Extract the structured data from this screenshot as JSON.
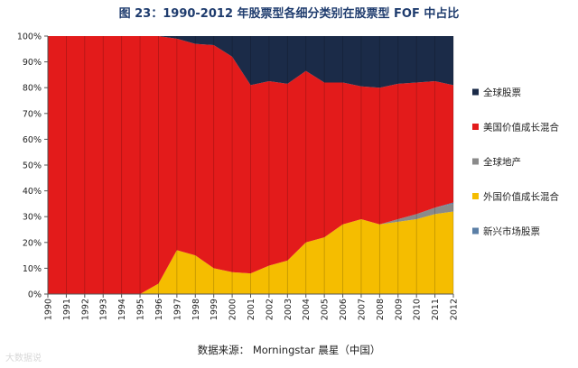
{
  "title": "图 23：1990-2012 年股票型各细分类别在股票型 FOF 中占比",
  "source": "数据来源：  Morningstar 晨星（中国）",
  "watermark": "大数据说",
  "colors": {
    "全球股票": "#1b2b48",
    "美国价值成长混合": "#e31b1b",
    "全球地产": "#8a8a8a",
    "外国价值成长混合": "#f5bd00",
    "新兴市场股票": "#5b7fa6"
  },
  "chart_data": {
    "type": "area",
    "stacked": true,
    "x": [
      "1990",
      "1991",
      "1992",
      "1993",
      "1994",
      "1995",
      "1996",
      "1997",
      "1998",
      "1999",
      "2000",
      "2001",
      "2002",
      "2003",
      "2004",
      "2005",
      "2006",
      "2007",
      "2008",
      "2009",
      "2010",
      "2011",
      "2012"
    ],
    "ylim": [
      0,
      100
    ],
    "y_ticks": [
      "0%",
      "10%",
      "20%",
      "30%",
      "40%",
      "50%",
      "60%",
      "70%",
      "80%",
      "90%",
      "100%"
    ],
    "legend_position": "right",
    "series": [
      {
        "name": "外国价值成长混合",
        "values": [
          0,
          0,
          0,
          0,
          0,
          0,
          4,
          17,
          15,
          10,
          8.5,
          8,
          11,
          13,
          20,
          22,
          27,
          29,
          27,
          28,
          29,
          31,
          32
        ]
      },
      {
        "name": "全球地产",
        "values": [
          0,
          0,
          0,
          0,
          0,
          0,
          0,
          0,
          0,
          0,
          0,
          0,
          0,
          0,
          0,
          0,
          0,
          0,
          0,
          1,
          2,
          2.5,
          3
        ]
      },
      {
        "name": "新兴市场股票",
        "values": [
          0,
          0,
          0,
          0,
          0,
          0,
          0,
          0,
          0,
          0,
          0,
          0,
          0,
          0,
          0,
          0,
          0,
          0,
          0,
          0,
          0,
          0,
          0.5
        ]
      },
      {
        "name": "美国价值成长混合",
        "values": [
          100,
          100,
          100,
          100,
          100,
          100,
          96,
          82,
          82,
          86.5,
          83.5,
          73,
          71.5,
          68.5,
          66.5,
          60,
          55,
          51.5,
          53,
          52.5,
          51,
          49,
          45.5
        ]
      },
      {
        "name": "全球股票",
        "values": [
          0,
          0,
          0,
          0,
          0,
          0,
          0,
          1,
          3,
          3.5,
          8,
          19,
          17.5,
          18.5,
          13.5,
          18,
          18,
          19.5,
          20,
          18.5,
          18,
          17.5,
          19
        ]
      }
    ],
    "legend": [
      "全球股票",
      "美国价值成长混合",
      "全球地产",
      "外国价值成长混合",
      "新兴市场股票"
    ]
  }
}
